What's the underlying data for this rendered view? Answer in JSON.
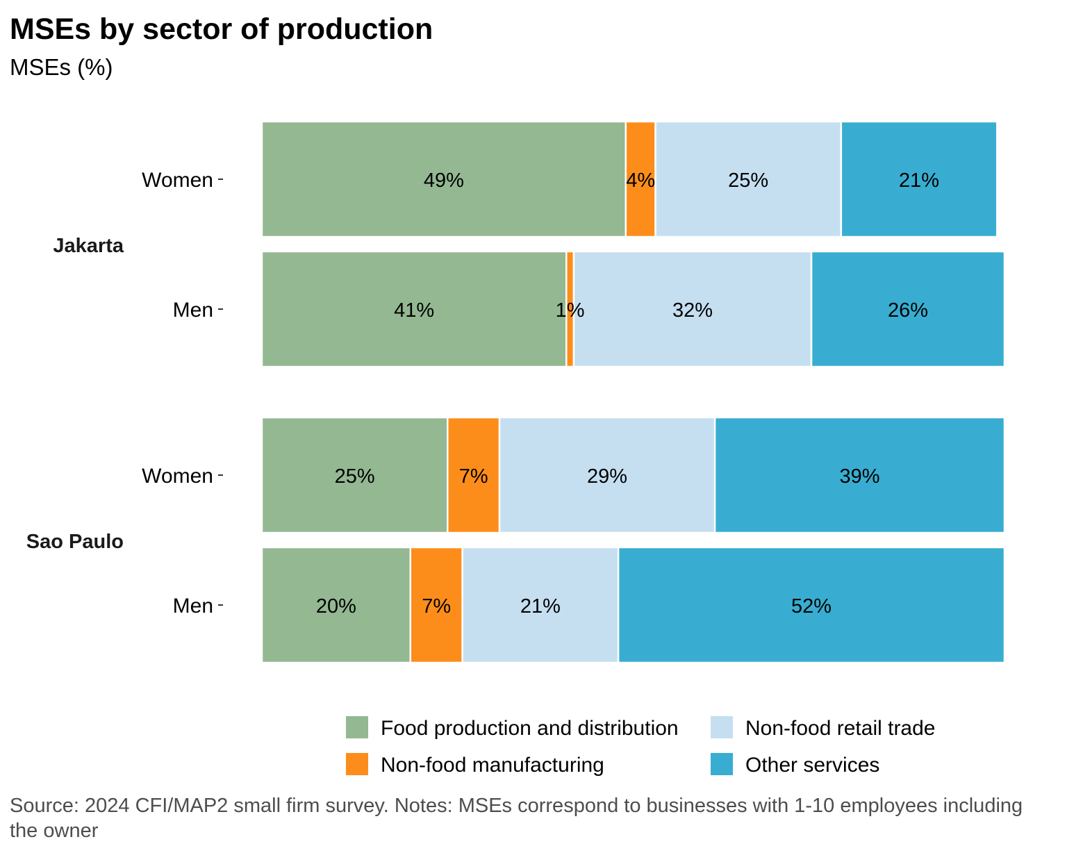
{
  "title": "MSEs by sector of production",
  "subtitle": "MSEs (%)",
  "source": "Source: 2024 CFI/MAP2 small firm survey. Notes: MSEs correspond to businesses with 1-10 employees including the owner",
  "chart_data": {
    "type": "bar",
    "orientation": "horizontal",
    "stacked": true,
    "groups": [
      "Jakarta",
      "Sao Paulo"
    ],
    "categories": [
      "Women",
      "Men"
    ],
    "xlim": [
      0,
      100
    ],
    "grid": false,
    "legend_position": "bottom",
    "series": [
      {
        "name": "Food production and distribution",
        "color": "#93b892"
      },
      {
        "name": "Non-food manufacturing",
        "color": "#fd8d1b"
      },
      {
        "name": "Non-food retail trade",
        "color": "#c5dff1"
      },
      {
        "name": "Other services",
        "color": "#38add1"
      }
    ],
    "bars": [
      {
        "group": "Jakarta",
        "category": "Women",
        "values": [
          49,
          4,
          25,
          21
        ],
        "labels": [
          "49%",
          "4%",
          "25%",
          "21%"
        ]
      },
      {
        "group": "Jakarta",
        "category": "Men",
        "values": [
          41,
          1,
          32,
          26
        ],
        "labels": [
          "41%",
          "1%",
          "32%",
          "26%"
        ]
      },
      {
        "group": "Sao Paulo",
        "category": "Women",
        "values": [
          25,
          7,
          29,
          39
        ],
        "labels": [
          "25%",
          "7%",
          "29%",
          "39%"
        ]
      },
      {
        "group": "Sao Paulo",
        "category": "Men",
        "values": [
          20,
          7,
          21,
          52
        ],
        "labels": [
          "20%",
          "7%",
          "21%",
          "52%"
        ]
      }
    ]
  }
}
